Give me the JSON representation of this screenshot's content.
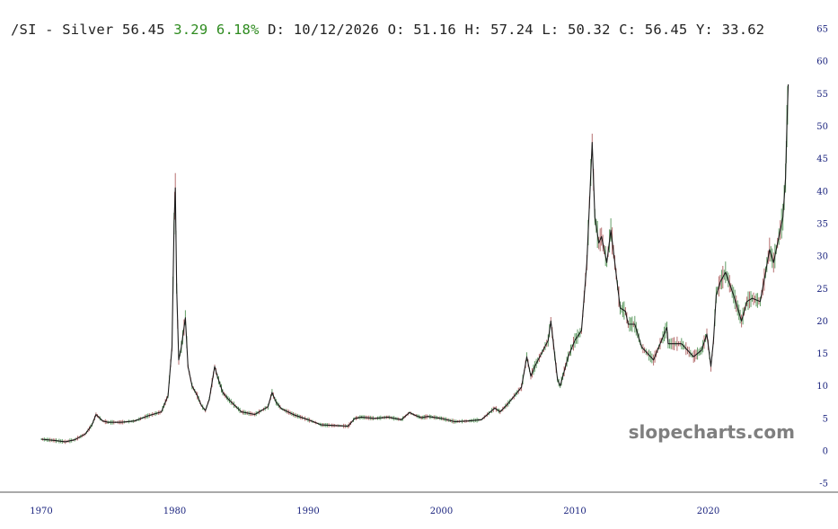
{
  "header": {
    "symbol": "/SI",
    "separator": "-",
    "name": "Silver",
    "last": "56.45",
    "change": "3.29",
    "change_pct": "6.18%",
    "date_label": "D:",
    "date": "10/12/2026",
    "open_label": "O:",
    "open": "51.16",
    "high_label": "H:",
    "high": "57.24",
    "low_label": "L:",
    "low": "50.32",
    "close_label": "C:",
    "close": "56.45",
    "year_label": "Y:",
    "year": "33.62"
  },
  "watermark": "slopecharts.com",
  "colors": {
    "price_line": "#1b1b1b",
    "up_candle": "#2e7d32",
    "down_candle": "#9e4040",
    "axis_text": "#1a237e",
    "axis_line": "#555555",
    "change_text": "#2e8b1f",
    "watermark": "#7f7f7f"
  },
  "chart_data": {
    "type": "line",
    "title": "/SI - Silver",
    "xlabel": "",
    "ylabel": "",
    "ylim": [
      -5,
      65
    ],
    "xlim": [
      1969.0,
      2026.8
    ],
    "grid": false,
    "y_ticks": [
      "65",
      "60",
      "55",
      "50",
      "45",
      "40",
      "35",
      "30",
      "25",
      "20",
      "15",
      "10",
      "5",
      "0",
      "-5"
    ],
    "x_ticks": [
      "1970",
      "1980",
      "1990",
      "2000",
      "2010",
      "2020"
    ],
    "series": [
      {
        "x": [
          1970.0,
          1971.0,
          1971.8,
          1972.5,
          1973.3,
          1973.8,
          1974.1,
          1974.6,
          1975.0,
          1976.0,
          1977.0,
          1978.0,
          1979.0,
          1979.5,
          1979.8,
          1979.95,
          1980.05,
          1980.15,
          1980.3,
          1980.5,
          1980.8,
          1981.0,
          1981.3,
          1981.7,
          1982.0,
          1982.3,
          1982.6,
          1983.0,
          1983.2,
          1983.6,
          1984.0,
          1985.0,
          1986.0,
          1987.0,
          1987.3,
          1987.6,
          1988.0,
          1989.0,
          1990.0,
          1991.0,
          1992.0,
          1993.0,
          1993.5,
          1994.0,
          1995.0,
          1996.0,
          1997.0,
          1997.6,
          1998.0,
          1998.5,
          1999.0,
          2000.0,
          2001.0,
          2002.0,
          2003.0,
          2004.0,
          2004.4,
          2005.0,
          2006.0,
          2006.4,
          2006.7,
          2007.0,
          2008.0,
          2008.2,
          2008.7,
          2008.9,
          2009.5,
          2010.0,
          2010.5,
          2010.9,
          2011.3,
          2011.5,
          2011.8,
          2012.0,
          2012.4,
          2012.7,
          2013.0,
          2013.4,
          2013.8,
          2014.0,
          2014.5,
          2015.0,
          2015.9,
          2016.5,
          2016.9,
          2017.0,
          2018.0,
          2018.9,
          2019.5,
          2019.9,
          2020.2,
          2020.4,
          2020.6,
          2020.9,
          2021.3,
          2021.9,
          2022.5,
          2022.9,
          2023.3,
          2023.9,
          2024.3,
          2024.6,
          2024.9,
          2025.3,
          2025.6,
          2025.8,
          2025.9,
          2026.0
        ],
        "values": [
          1.8,
          1.6,
          1.4,
          1.7,
          2.6,
          4.0,
          5.6,
          4.6,
          4.4,
          4.4,
          4.6,
          5.4,
          6.0,
          8.5,
          16.0,
          35.0,
          40.5,
          25.0,
          14.0,
          16.0,
          20.5,
          13.0,
          10.0,
          8.5,
          7.0,
          6.2,
          8.0,
          13.0,
          11.5,
          9.0,
          8.0,
          6.0,
          5.6,
          6.8,
          9.0,
          7.5,
          6.5,
          5.5,
          4.8,
          4.0,
          3.9,
          3.8,
          5.0,
          5.2,
          5.0,
          5.2,
          4.8,
          5.9,
          5.5,
          5.1,
          5.3,
          5.0,
          4.5,
          4.6,
          4.8,
          6.6,
          6.0,
          7.3,
          9.8,
          14.5,
          11.5,
          13.0,
          17.0,
          20.0,
          11.0,
          10.0,
          14.5,
          17.0,
          18.5,
          29.0,
          47.5,
          36.0,
          32.0,
          33.0,
          29.0,
          34.0,
          29.0,
          22.0,
          21.5,
          19.5,
          19.5,
          16.0,
          14.0,
          17.0,
          19.0,
          16.5,
          16.5,
          14.5,
          15.5,
          18.0,
          13.0,
          17.0,
          24.0,
          26.0,
          27.5,
          24.0,
          20.0,
          23.0,
          23.5,
          23.0,
          27.5,
          31.0,
          29.0,
          33.0,
          36.0,
          42.0,
          50.0,
          56.45
        ]
      }
    ]
  }
}
